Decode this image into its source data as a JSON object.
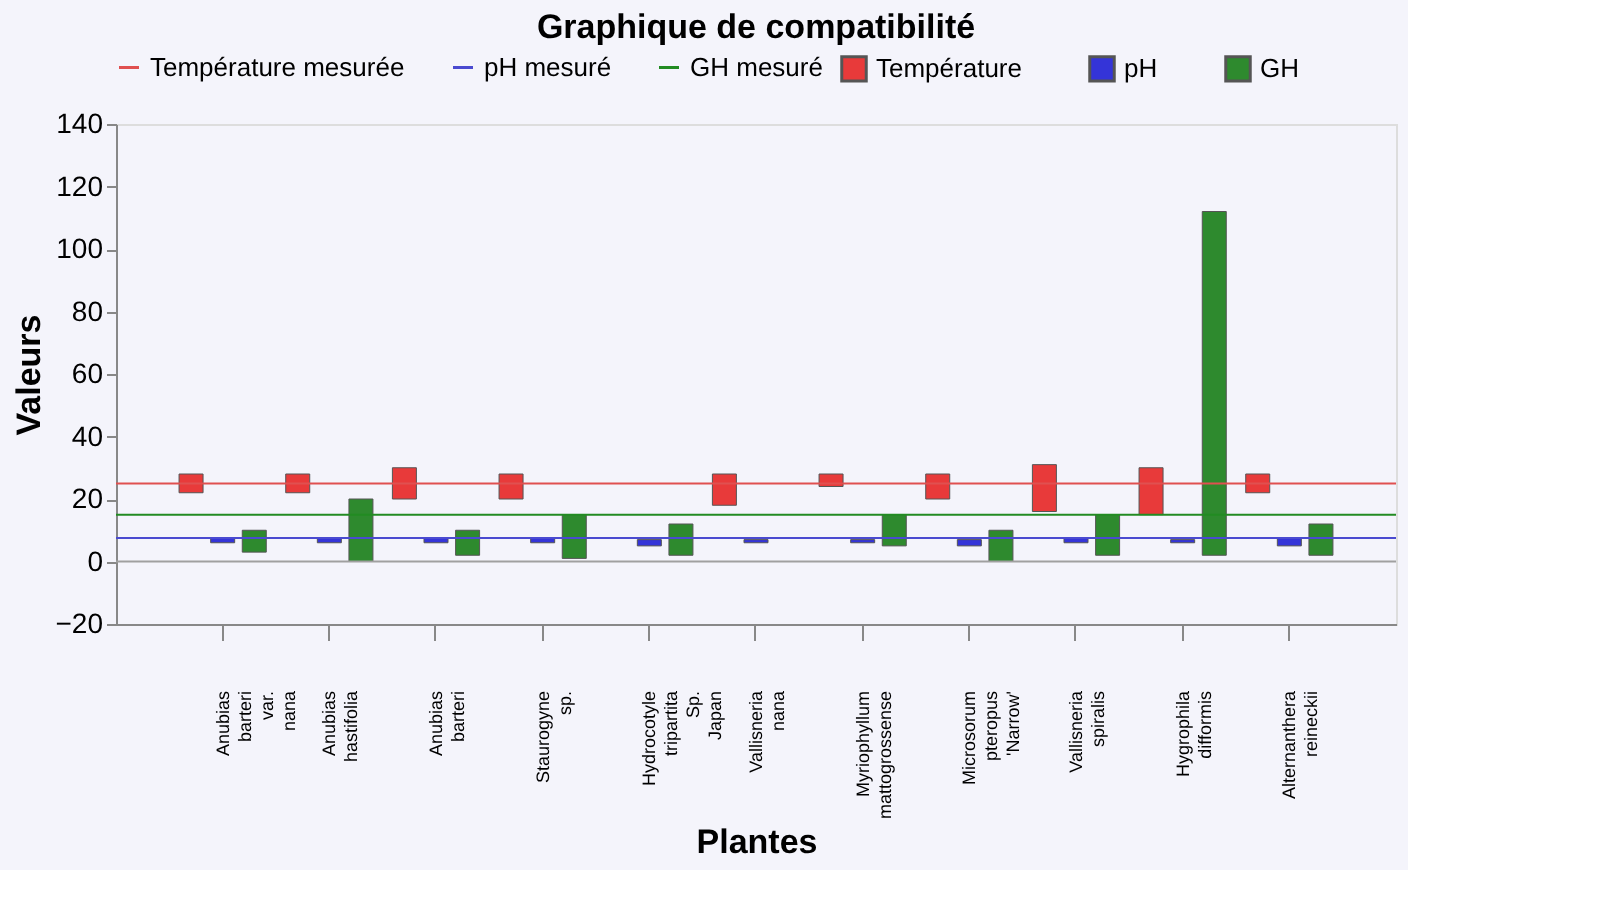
{
  "chart_data": {
    "type": "bar",
    "title": "Graphique de compatibilité",
    "xlabel": "Plantes",
    "ylabel": "Valeurs",
    "categories": [
      "Anubias\nbarteri\nvar.\nnana",
      "Anubias\nhastifolia",
      "Anubias\nbarteri",
      "Staurogyne\nsp.",
      "Hydrocotyle\ntripartita\nSp.\nJapan",
      "Vallisneria\nnana",
      "Myriophyllum\nmattogrossense",
      "Microsorum\npteropus\n'Narrow'",
      "Vallisneria\nspiralis",
      "Hygrophila\ndifformis",
      "Alternanthera\nreineckii"
    ],
    "series": [
      {
        "name": "Température",
        "color": "#e83a3a",
        "base": [
          22,
          22,
          20,
          20,
          null,
          18,
          24,
          20,
          16,
          15,
          22
        ],
        "values": [
          6,
          6,
          10,
          8,
          null,
          10,
          4,
          8,
          15,
          15,
          6
        ]
      },
      {
        "name": "pH",
        "color": "#3434d8",
        "base": [
          6,
          6,
          6,
          6,
          5,
          6,
          6,
          5,
          6,
          6,
          5
        ],
        "values": [
          1.5,
          1.5,
          1.5,
          1.5,
          2,
          1,
          1,
          2,
          1.5,
          1,
          2.5
        ]
      },
      {
        "name": "GH",
        "color": "#2e8a2e",
        "base": [
          3,
          0,
          2,
          1,
          2,
          null,
          5,
          0,
          2,
          2,
          2
        ],
        "values": [
          7,
          20,
          8,
          14,
          10,
          null,
          10,
          10,
          13,
          110,
          10
        ]
      }
    ],
    "ref_lines": [
      {
        "axis": "y",
        "value": 25,
        "label": "Température mesurée",
        "color": "#e05050"
      },
      {
        "axis": "y",
        "value": 7.5,
        "label": "pH mesuré",
        "color": "#4a4ad0"
      },
      {
        "axis": "y",
        "value": 15,
        "label": "GH mesuré",
        "color": "#228b22"
      },
      {
        "axis": "y",
        "value": 0,
        "color": "#a0a0a0"
      }
    ],
    "ylim": [
      -20,
      140
    ],
    "yticks": [
      -20,
      0,
      20,
      40,
      60,
      80,
      100,
      120,
      140
    ],
    "grid": false,
    "legend": "top"
  }
}
